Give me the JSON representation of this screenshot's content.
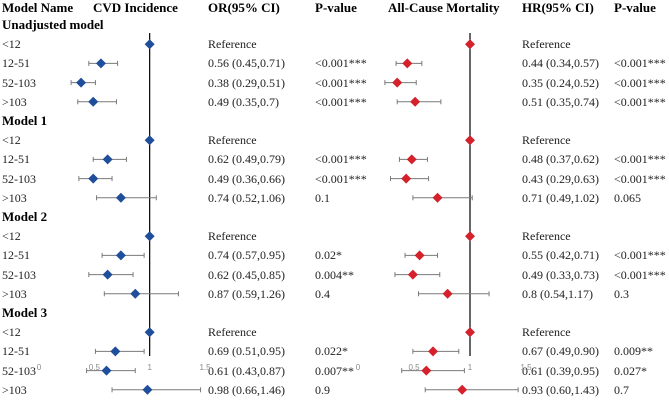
{
  "headers": {
    "model_name": "Model Name",
    "cvd_incidence": "CVD Incidence",
    "or_ci": "OR(95% CI)",
    "p_value_1": "P-value",
    "all_cause_mortality": "All-Cause Mortality",
    "hr_ci": "HR(95% CI)",
    "p_value_2": "P-value"
  },
  "chart_data": {
    "type": "forest",
    "reference_value": 1,
    "panels": [
      {
        "name": "CVD Incidence",
        "estimate": "OR",
        "marker_color": "#1f4e9a",
        "xlim": [
          0,
          1.5
        ],
        "ticks": [
          "0",
          "0.5",
          "1",
          "1.5"
        ],
        "tick_values": [
          0,
          0.5,
          1,
          1.5
        ]
      },
      {
        "name": "All-Cause Mortality",
        "estimate": "HR",
        "marker_color": "#d4212c",
        "xlim": [
          0,
          1.5
        ],
        "ticks": [
          "0",
          "0.5",
          "1",
          "1.5"
        ],
        "tick_values": [
          0,
          0.5,
          1,
          1.5
        ]
      }
    ],
    "groups": [
      {
        "name": "Unadjusted model",
        "rows": [
          {
            "label": "<12",
            "cvd": {
              "est": 1,
              "lo": 1,
              "hi": 1,
              "ci_text": "Reference",
              "p_text": ""
            },
            "mort": {
              "est": 1,
              "lo": 1,
              "hi": 1,
              "ci_text": "Reference",
              "p_text": ""
            }
          },
          {
            "label": "12-51",
            "cvd": {
              "est": 0.56,
              "lo": 0.45,
              "hi": 0.71,
              "ci_text": "0.56 (0.45,0.71)",
              "p_text": "<0.001***"
            },
            "mort": {
              "est": 0.44,
              "lo": 0.34,
              "hi": 0.57,
              "ci_text": "0.44 (0.34,0.57)",
              "p_text": "<0.001***"
            }
          },
          {
            "label": "52-103",
            "cvd": {
              "est": 0.38,
              "lo": 0.29,
              "hi": 0.51,
              "ci_text": "0.38 (0.29,0.51)",
              "p_text": "<0.001***"
            },
            "mort": {
              "est": 0.35,
              "lo": 0.24,
              "hi": 0.52,
              "ci_text": "0.35 (0.24,0.52)",
              "p_text": "<0.001***"
            }
          },
          {
            "label": ">103",
            "cvd": {
              "est": 0.49,
              "lo": 0.35,
              "hi": 0.7,
              "ci_text": "0.49 (0.35,0.7)",
              "p_text": "<0.001***"
            },
            "mort": {
              "est": 0.51,
              "lo": 0.35,
              "hi": 0.74,
              "ci_text": "0.51 (0.35,0.74)",
              "p_text": "<0.001***"
            }
          }
        ]
      },
      {
        "name": "Model 1",
        "rows": [
          {
            "label": "<12",
            "cvd": {
              "est": 1,
              "lo": 1,
              "hi": 1,
              "ci_text": "Reference",
              "p_text": ""
            },
            "mort": {
              "est": 1,
              "lo": 1,
              "hi": 1,
              "ci_text": "Reference",
              "p_text": ""
            }
          },
          {
            "label": "12-51",
            "cvd": {
              "est": 0.62,
              "lo": 0.49,
              "hi": 0.79,
              "ci_text": "0.62 (0.49,0.79)",
              "p_text": "<0.001***"
            },
            "mort": {
              "est": 0.48,
              "lo": 0.37,
              "hi": 0.62,
              "ci_text": "0.48 (0.37,0.62)",
              "p_text": "<0.001***"
            }
          },
          {
            "label": "52-103",
            "cvd": {
              "est": 0.49,
              "lo": 0.36,
              "hi": 0.66,
              "ci_text": "0.49 (0.36,0.66)",
              "p_text": "<0.001***"
            },
            "mort": {
              "est": 0.43,
              "lo": 0.29,
              "hi": 0.63,
              "ci_text": "0.43 (0.29,0.63)",
              "p_text": "<0.001***"
            }
          },
          {
            "label": ">103",
            "cvd": {
              "est": 0.74,
              "lo": 0.52,
              "hi": 1.06,
              "ci_text": "0.74 (0.52,1.06)",
              "p_text": "0.1"
            },
            "mort": {
              "est": 0.71,
              "lo": 0.49,
              "hi": 1.02,
              "ci_text": "0.71 (0.49,1.02)",
              "p_text": "0.065"
            }
          }
        ]
      },
      {
        "name": "Model 2",
        "rows": [
          {
            "label": "<12",
            "cvd": {
              "est": 1,
              "lo": 1,
              "hi": 1,
              "ci_text": "Reference",
              "p_text": ""
            },
            "mort": {
              "est": 1,
              "lo": 1,
              "hi": 1,
              "ci_text": "Reference",
              "p_text": ""
            }
          },
          {
            "label": "12-51",
            "cvd": {
              "est": 0.74,
              "lo": 0.57,
              "hi": 0.95,
              "ci_text": "0.74 (0.57,0.95)",
              "p_text": "0.02*"
            },
            "mort": {
              "est": 0.55,
              "lo": 0.42,
              "hi": 0.71,
              "ci_text": "0.55 (0.42,0.71)",
              "p_text": "<0.001***"
            }
          },
          {
            "label": "52-103",
            "cvd": {
              "est": 0.62,
              "lo": 0.45,
              "hi": 0.85,
              "ci_text": "0.62 (0.45,0.85)",
              "p_text": "0.004**"
            },
            "mort": {
              "est": 0.49,
              "lo": 0.33,
              "hi": 0.73,
              "ci_text": "0.49 (0.33,0.73)",
              "p_text": "<0.001***"
            }
          },
          {
            "label": ">103",
            "cvd": {
              "est": 0.87,
              "lo": 0.59,
              "hi": 1.26,
              "ci_text": "0.87 (0.59,1.26)",
              "p_text": "0.4"
            },
            "mort": {
              "est": 0.8,
              "lo": 0.54,
              "hi": 1.17,
              "ci_text": "0.8 (0.54,1.17)",
              "p_text": "0.3"
            }
          }
        ]
      },
      {
        "name": "Model 3",
        "rows": [
          {
            "label": "<12",
            "cvd": {
              "est": 1,
              "lo": 1,
              "hi": 1,
              "ci_text": "Reference",
              "p_text": ""
            },
            "mort": {
              "est": 1,
              "lo": 1,
              "hi": 1,
              "ci_text": "Reference",
              "p_text": ""
            }
          },
          {
            "label": "12-51",
            "cvd": {
              "est": 0.69,
              "lo": 0.51,
              "hi": 0.95,
              "ci_text": "0.69 (0.51,0.95)",
              "p_text": "0.022*"
            },
            "mort": {
              "est": 0.67,
              "lo": 0.49,
              "hi": 0.9,
              "ci_text": "0.67 (0.49,0.90)",
              "p_text": "0.009**"
            }
          },
          {
            "label": "52-103",
            "cvd": {
              "est": 0.61,
              "lo": 0.43,
              "hi": 0.87,
              "ci_text": "0.61 (0.43,0.87)",
              "p_text": "0.007**"
            },
            "mort": {
              "est": 0.61,
              "lo": 0.39,
              "hi": 0.95,
              "ci_text": "0.61 (0.39,0.95)",
              "p_text": "0.027*"
            }
          },
          {
            "label": ">103",
            "cvd": {
              "est": 0.98,
              "lo": 0.66,
              "hi": 1.46,
              "ci_text": "0.98 (0.66,1.46)",
              "p_text": "0.9"
            },
            "mort": {
              "est": 0.93,
              "lo": 0.6,
              "hi": 1.43,
              "ci_text": "0.93 (0.60,1.43)",
              "p_text": "0.7"
            }
          }
        ]
      }
    ]
  }
}
